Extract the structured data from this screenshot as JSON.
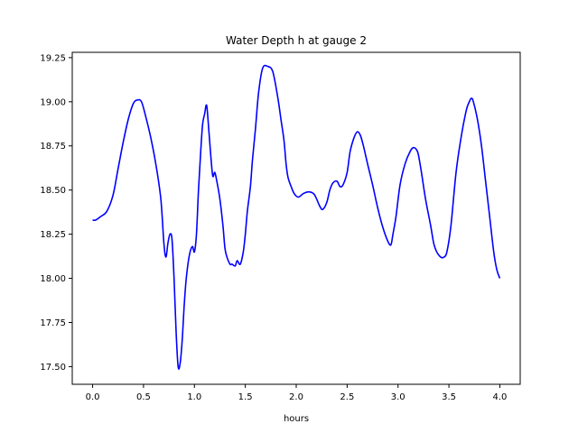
{
  "chart_data": {
    "type": "line",
    "title": "Water Depth h at gauge 2",
    "xlabel": "hours",
    "ylabel": "",
    "xlim": [
      -0.2,
      4.2
    ],
    "ylim": [
      17.4,
      19.28
    ],
    "xticks": [
      0.0,
      0.5,
      1.0,
      1.5,
      2.0,
      2.5,
      3.0,
      3.5,
      4.0
    ],
    "xtick_labels": [
      "0.0",
      "0.5",
      "1.0",
      "1.5",
      "2.0",
      "2.5",
      "3.0",
      "3.5",
      "4.0"
    ],
    "yticks": [
      17.5,
      17.75,
      18.0,
      18.25,
      18.5,
      18.75,
      19.0,
      19.25
    ],
    "ytick_labels": [
      "17.50",
      "17.75",
      "18.00",
      "18.25",
      "18.50",
      "18.75",
      "19.00",
      "19.25"
    ],
    "grid": false,
    "series": [
      {
        "color": "#0000ff",
        "x": [
          0.0,
          0.03,
          0.08,
          0.14,
          0.2,
          0.25,
          0.3,
          0.35,
          0.4,
          0.44,
          0.48,
          0.52,
          0.57,
          0.62,
          0.67,
          0.7,
          0.72,
          0.74,
          0.76,
          0.78,
          0.8,
          0.82,
          0.84,
          0.86,
          0.88,
          0.9,
          0.92,
          0.95,
          0.98,
          1.0,
          1.02,
          1.04,
          1.06,
          1.08,
          1.1,
          1.12,
          1.14,
          1.16,
          1.18,
          1.2,
          1.22,
          1.25,
          1.28,
          1.3,
          1.32,
          1.35,
          1.37,
          1.4,
          1.42,
          1.45,
          1.48,
          1.5,
          1.52,
          1.55,
          1.57,
          1.6,
          1.63,
          1.67,
          1.72,
          1.77,
          1.82,
          1.85,
          1.88,
          1.9,
          1.92,
          1.95,
          1.98,
          2.02,
          2.07,
          2.12,
          2.17,
          2.2,
          2.23,
          2.26,
          2.3,
          2.33,
          2.36,
          2.4,
          2.43,
          2.46,
          2.5,
          2.53,
          2.57,
          2.6,
          2.63,
          2.66,
          2.7,
          2.75,
          2.8,
          2.85,
          2.9,
          2.93,
          2.95,
          2.98,
          3.02,
          3.07,
          3.12,
          3.15,
          3.18,
          3.2,
          3.23,
          3.27,
          3.32,
          3.35,
          3.38,
          3.42,
          3.45,
          3.48,
          3.52,
          3.57,
          3.62,
          3.67,
          3.7,
          3.72,
          3.74,
          3.78,
          3.82,
          3.86,
          3.9,
          3.94,
          3.97,
          4.0
        ],
        "values": [
          18.33,
          18.33,
          18.35,
          18.38,
          18.47,
          18.62,
          18.77,
          18.9,
          18.99,
          19.01,
          19.0,
          18.92,
          18.8,
          18.65,
          18.45,
          18.2,
          18.12,
          18.2,
          18.25,
          18.22,
          18.0,
          17.7,
          17.5,
          17.52,
          17.65,
          17.85,
          18.0,
          18.13,
          18.18,
          18.15,
          18.25,
          18.5,
          18.7,
          18.87,
          18.93,
          18.98,
          18.85,
          18.7,
          18.58,
          18.6,
          18.55,
          18.45,
          18.3,
          18.17,
          18.12,
          18.08,
          18.08,
          18.07,
          18.1,
          18.08,
          18.15,
          18.25,
          18.38,
          18.52,
          18.67,
          18.85,
          19.05,
          19.19,
          19.2,
          19.17,
          19.02,
          18.9,
          18.78,
          18.65,
          18.57,
          18.52,
          18.48,
          18.46,
          18.48,
          18.49,
          18.48,
          18.45,
          18.41,
          18.39,
          18.43,
          18.5,
          18.54,
          18.55,
          18.52,
          18.53,
          18.6,
          18.72,
          18.8,
          18.83,
          18.81,
          18.75,
          18.65,
          18.53,
          18.4,
          18.29,
          18.21,
          18.19,
          18.25,
          18.35,
          18.53,
          18.65,
          18.72,
          18.74,
          18.73,
          18.7,
          18.6,
          18.45,
          18.3,
          18.2,
          18.15,
          18.12,
          18.12,
          18.15,
          18.3,
          18.6,
          18.8,
          18.95,
          19.0,
          19.02,
          19.0,
          18.9,
          18.75,
          18.55,
          18.35,
          18.15,
          18.05,
          18.0
        ]
      }
    ]
  }
}
